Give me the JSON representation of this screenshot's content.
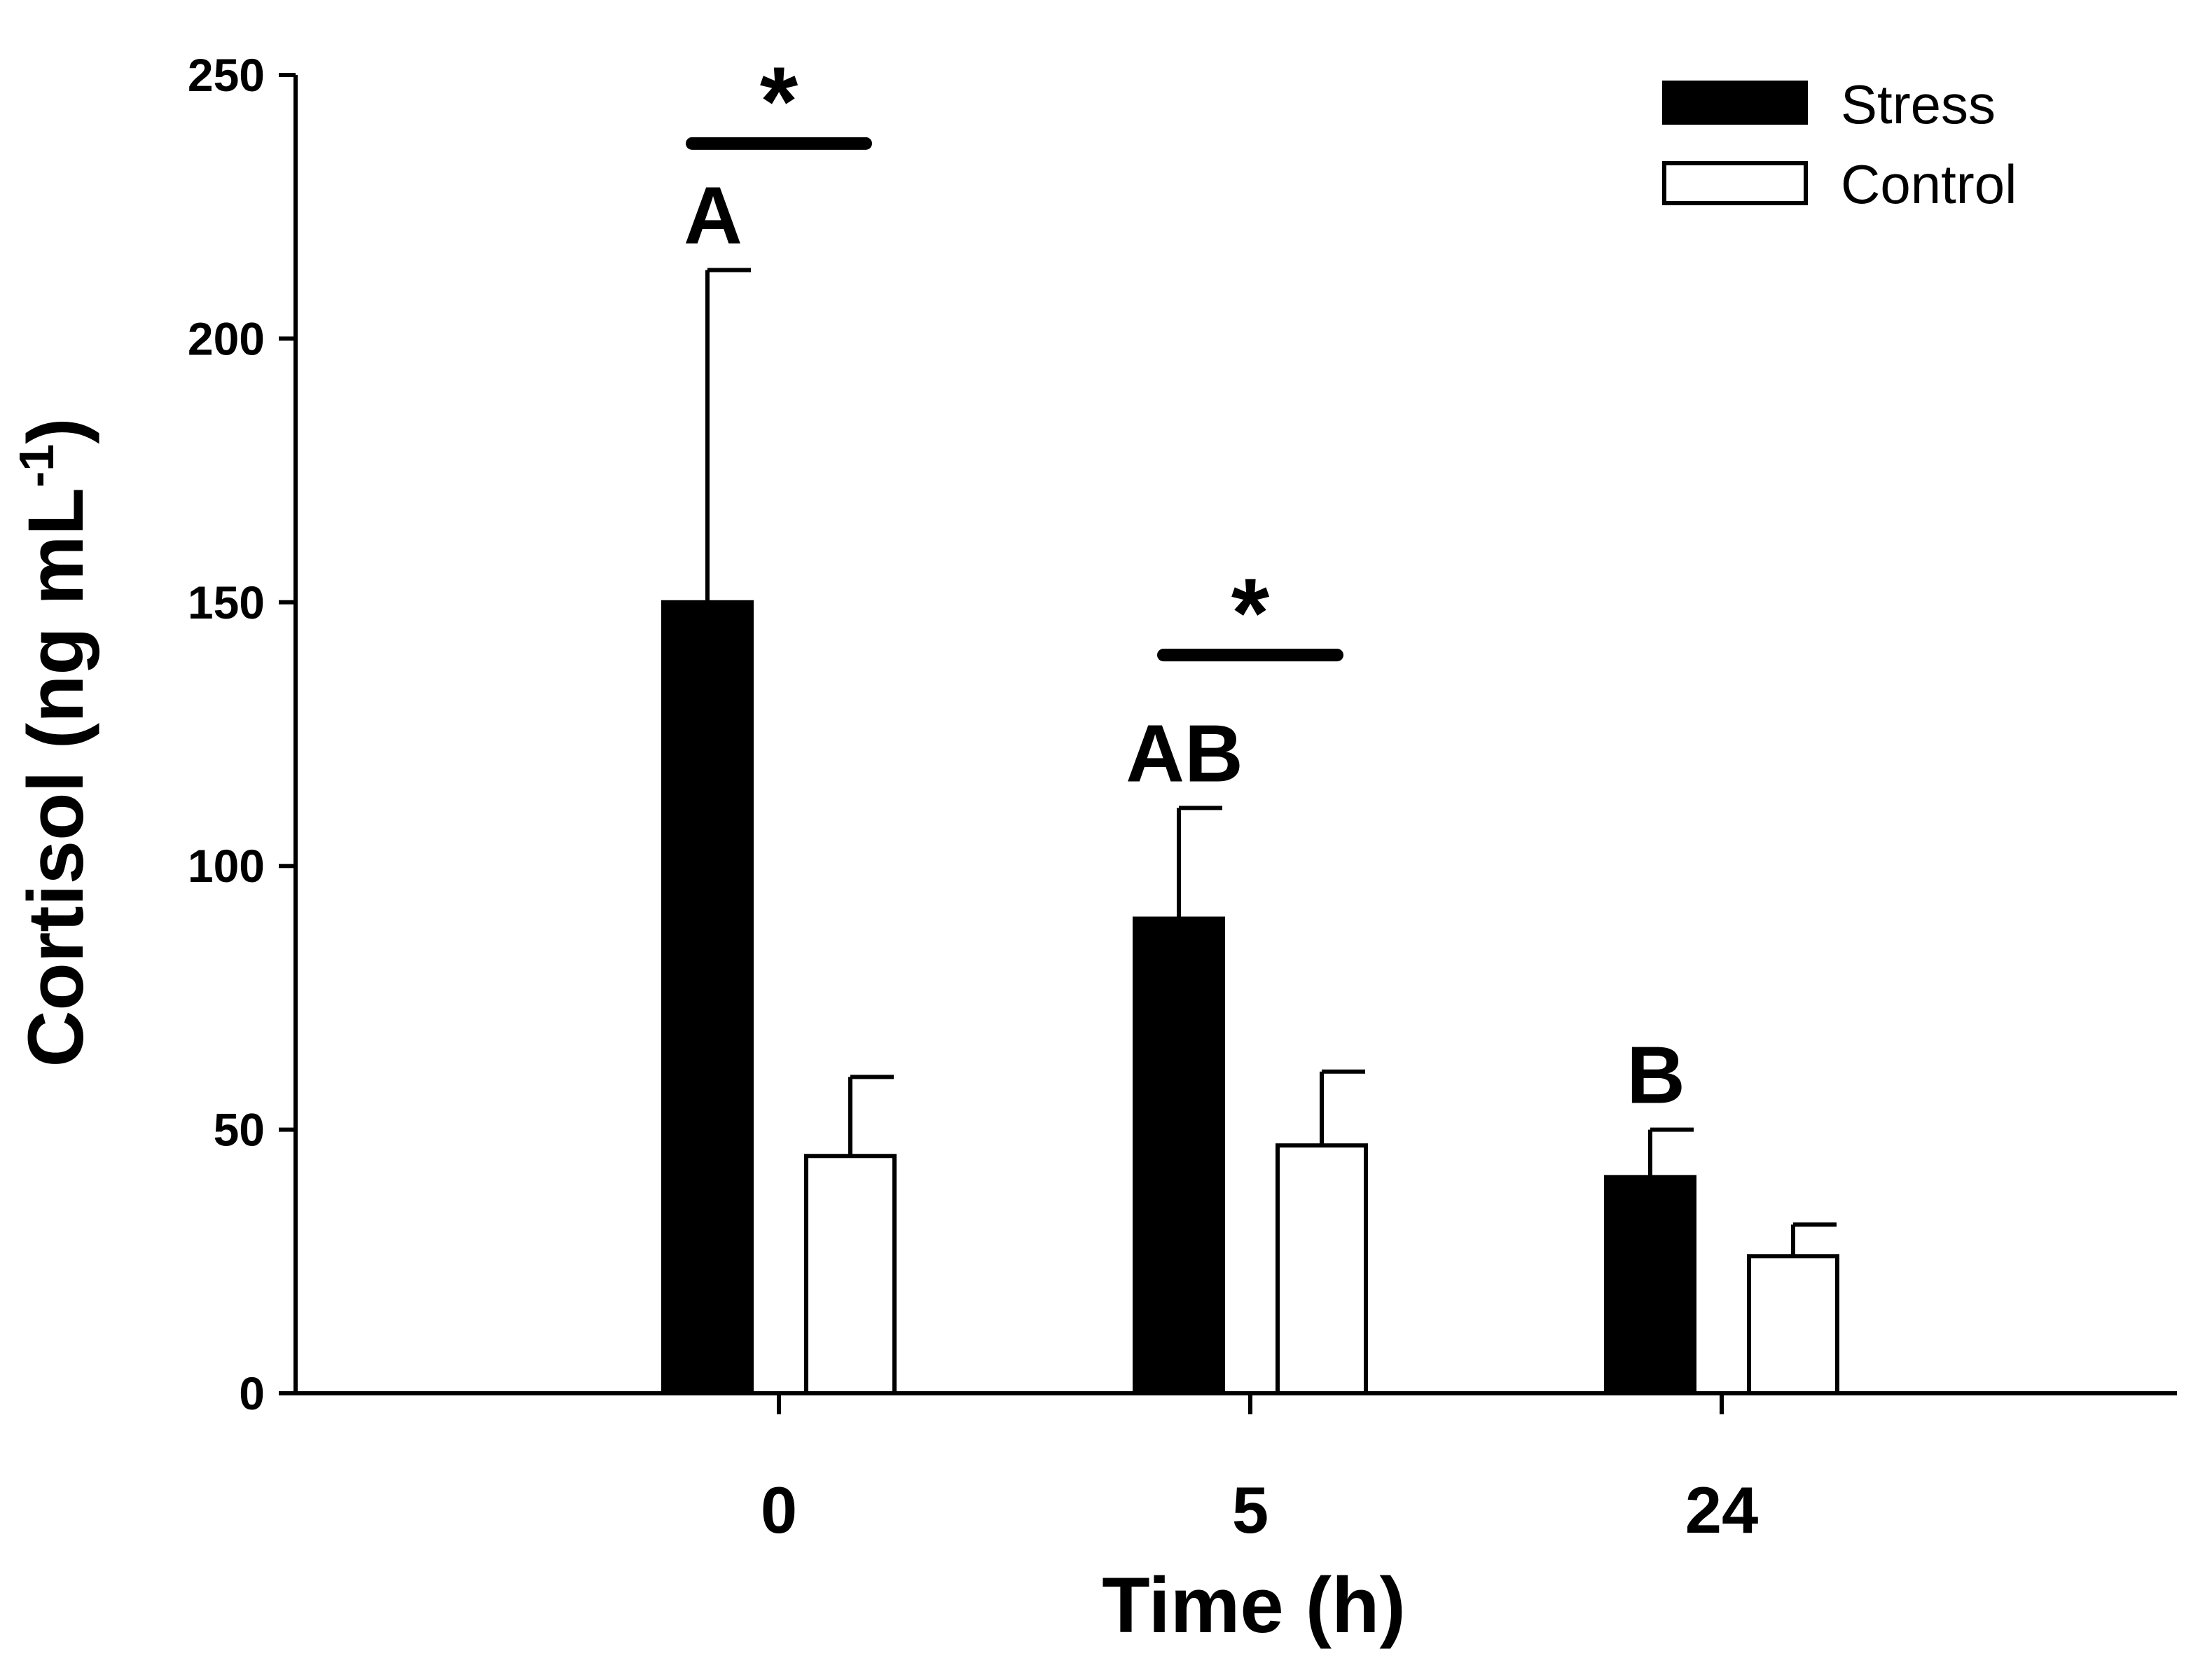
{
  "chart_data": {
    "type": "bar",
    "title": "",
    "xlabel": "Time (h)",
    "ylabel_main": "Cortisol (ng mL",
    "ylabel_sup": "-1",
    "ylabel_close": ")",
    "categories": [
      "0",
      "5",
      "24"
    ],
    "ylim": [
      0,
      250
    ],
    "yticks": [
      0,
      50,
      100,
      150,
      200,
      250
    ],
    "series": [
      {
        "name": "Stress",
        "color": "#000000",
        "values": [
          150,
          90,
          41
        ],
        "errors": [
          63,
          21,
          9
        ]
      },
      {
        "name": "Control",
        "color": "#ffffff",
        "values": [
          45,
          47,
          26
        ],
        "errors": [
          15,
          14,
          6
        ]
      }
    ],
    "letters": [
      {
        "category": 0,
        "text": "A"
      },
      {
        "category": 1,
        "text": "AB"
      },
      {
        "category": 2,
        "text": "B"
      }
    ],
    "significance": [
      {
        "category": 0,
        "text": "*",
        "level": 237
      },
      {
        "category": 1,
        "text": "*",
        "level": 140
      }
    ],
    "legend_position": "top-right",
    "grid": false
  }
}
